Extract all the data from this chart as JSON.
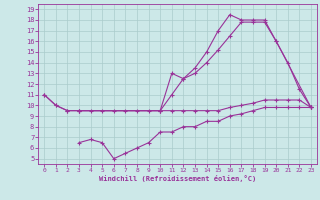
{
  "xlabel": "Windchill (Refroidissement éolien,°C)",
  "background_color": "#cce8e8",
  "line_color": "#993399",
  "grid_color": "#aacccc",
  "xlim": [
    -0.5,
    23.5
  ],
  "ylim": [
    4.5,
    19.5
  ],
  "xticks": [
    0,
    1,
    2,
    3,
    4,
    5,
    6,
    7,
    8,
    9,
    10,
    11,
    12,
    13,
    14,
    15,
    16,
    17,
    18,
    19,
    20,
    21,
    22,
    23
  ],
  "yticks": [
    5,
    6,
    7,
    8,
    9,
    10,
    11,
    12,
    13,
    14,
    15,
    16,
    17,
    18,
    19
  ],
  "line1_x": [
    0,
    1,
    2,
    3,
    10,
    11,
    12,
    13,
    14,
    15,
    16,
    17,
    18,
    19,
    20,
    21,
    22,
    23
  ],
  "line1_y": [
    11,
    10,
    9.5,
    9.5,
    9.5,
    13,
    12.5,
    13.5,
    15.0,
    17.0,
    18.5,
    18.0,
    18.0,
    18.0,
    16.0,
    14.0,
    11.5,
    9.8
  ],
  "line2_x": [
    0,
    1,
    2,
    3,
    10,
    11,
    12,
    13,
    14,
    15,
    16,
    17,
    18,
    19,
    20,
    23
  ],
  "line2_y": [
    11,
    10,
    9.5,
    9.5,
    9.5,
    11.0,
    12.5,
    13.0,
    14.0,
    15.2,
    16.5,
    17.8,
    17.8,
    17.8,
    16.0,
    9.8
  ],
  "line3_x": [
    3,
    4,
    5,
    6,
    7,
    8,
    9,
    10,
    11,
    12,
    13,
    14,
    15,
    16,
    17,
    18,
    19,
    20,
    21,
    22,
    23
  ],
  "line3_y": [
    9.5,
    9.5,
    9.5,
    9.5,
    9.5,
    9.5,
    9.5,
    9.5,
    9.5,
    9.5,
    9.5,
    9.5,
    9.5,
    9.8,
    10.0,
    10.2,
    10.5,
    10.5,
    10.5,
    10.5,
    9.8
  ],
  "line4_x": [
    3,
    4,
    5,
    6,
    7,
    8,
    9,
    10,
    11,
    12,
    13,
    14,
    15,
    16,
    17,
    18,
    19,
    20,
    21,
    22,
    23
  ],
  "line4_y": [
    6.5,
    6.8,
    6.5,
    5.0,
    5.5,
    6.0,
    6.5,
    7.5,
    7.5,
    8.0,
    8.0,
    8.5,
    8.5,
    9.0,
    9.2,
    9.5,
    9.8,
    9.8,
    9.8,
    9.8,
    9.8
  ]
}
